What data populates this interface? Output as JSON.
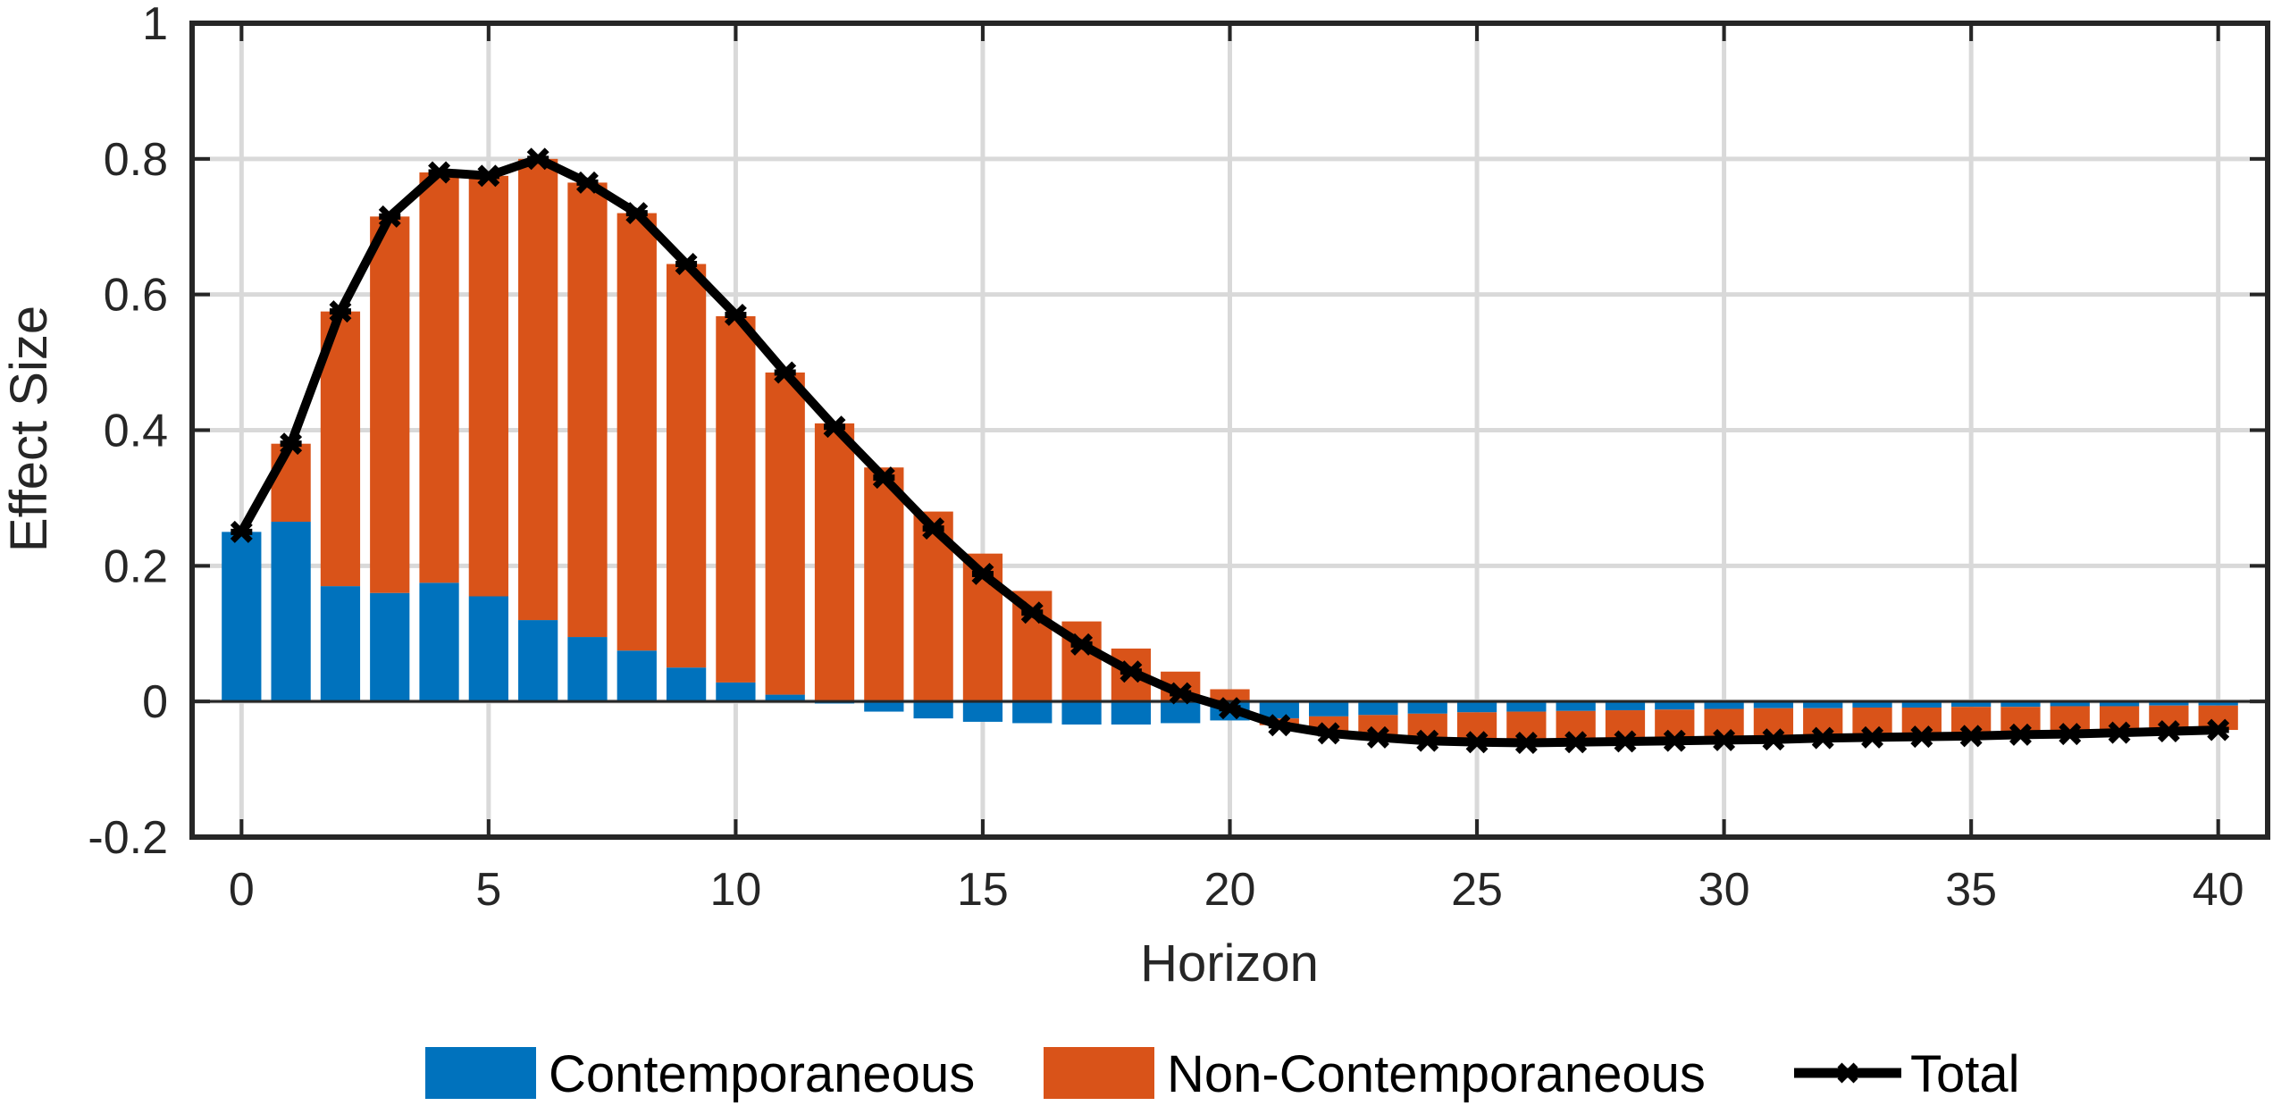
{
  "chart_data": {
    "type": "bar",
    "stacked": true,
    "xlabel": "Horizon",
    "ylabel": "Effect Size",
    "xlim": [
      -1,
      41
    ],
    "ylim": [
      -0.2,
      1
    ],
    "xticks": [
      0,
      5,
      10,
      15,
      20,
      25,
      30,
      35,
      40
    ],
    "xtick_labels": [
      "0",
      "5",
      "10",
      "15",
      "20",
      "25",
      "30",
      "35",
      "40"
    ],
    "yticks": [
      -0.2,
      0,
      0.2,
      0.4,
      0.6,
      0.8,
      1
    ],
    "ytick_labels": [
      "-0.2",
      "0",
      "0.2",
      "0.4",
      "0.6",
      "0.8",
      "1"
    ],
    "grid": true,
    "legend_position": "bottom",
    "x": [
      0,
      1,
      2,
      3,
      4,
      5,
      6,
      7,
      8,
      9,
      10,
      11,
      12,
      13,
      14,
      15,
      16,
      17,
      18,
      19,
      20,
      21,
      22,
      23,
      24,
      25,
      26,
      27,
      28,
      29,
      30,
      31,
      32,
      33,
      34,
      35,
      36,
      37,
      38,
      39,
      40
    ],
    "series": [
      {
        "name": "Contemporaneous",
        "kind": "bar",
        "color": "#0072BD",
        "values": [
          0.25,
          0.265,
          0.17,
          0.16,
          0.175,
          0.155,
          0.12,
          0.095,
          0.075,
          0.05,
          0.028,
          0.01,
          -0.003,
          -0.015,
          -0.025,
          -0.03,
          -0.032,
          -0.034,
          -0.034,
          -0.032,
          -0.028,
          -0.025,
          -0.022,
          -0.02,
          -0.018,
          -0.016,
          -0.015,
          -0.014,
          -0.013,
          -0.012,
          -0.011,
          -0.01,
          -0.01,
          -0.009,
          -0.009,
          -0.008,
          -0.008,
          -0.007,
          -0.007,
          -0.006,
          -0.006
        ]
      },
      {
        "name": "Non-Contemporaneous",
        "kind": "bar",
        "color": "#D95319",
        "values": [
          0,
          0.115,
          0.405,
          0.555,
          0.605,
          0.62,
          0.68,
          0.67,
          0.645,
          0.595,
          0.54,
          0.475,
          0.41,
          0.345,
          0.28,
          0.218,
          0.163,
          0.118,
          0.078,
          0.044,
          0.018,
          -0.01,
          -0.025,
          -0.033,
          -0.04,
          -0.044,
          -0.046,
          -0.046,
          -0.046,
          -0.046,
          -0.046,
          -0.046,
          -0.044,
          -0.044,
          -0.043,
          -0.043,
          -0.041,
          -0.041,
          -0.039,
          -0.038,
          -0.036
        ]
      },
      {
        "name": "Total",
        "kind": "line",
        "color": "#000000",
        "values": [
          0.25,
          0.38,
          0.575,
          0.715,
          0.78,
          0.775,
          0.8,
          0.765,
          0.72,
          0.645,
          0.57,
          0.485,
          0.405,
          0.33,
          0.255,
          0.188,
          0.131,
          0.084,
          0.044,
          0.012,
          -0.01,
          -0.035,
          -0.047,
          -0.053,
          -0.058,
          -0.06,
          -0.061,
          -0.06,
          -0.059,
          -0.058,
          -0.057,
          -0.056,
          -0.054,
          -0.053,
          -0.052,
          -0.051,
          -0.049,
          -0.048,
          -0.046,
          -0.044,
          -0.042
        ]
      }
    ]
  }
}
